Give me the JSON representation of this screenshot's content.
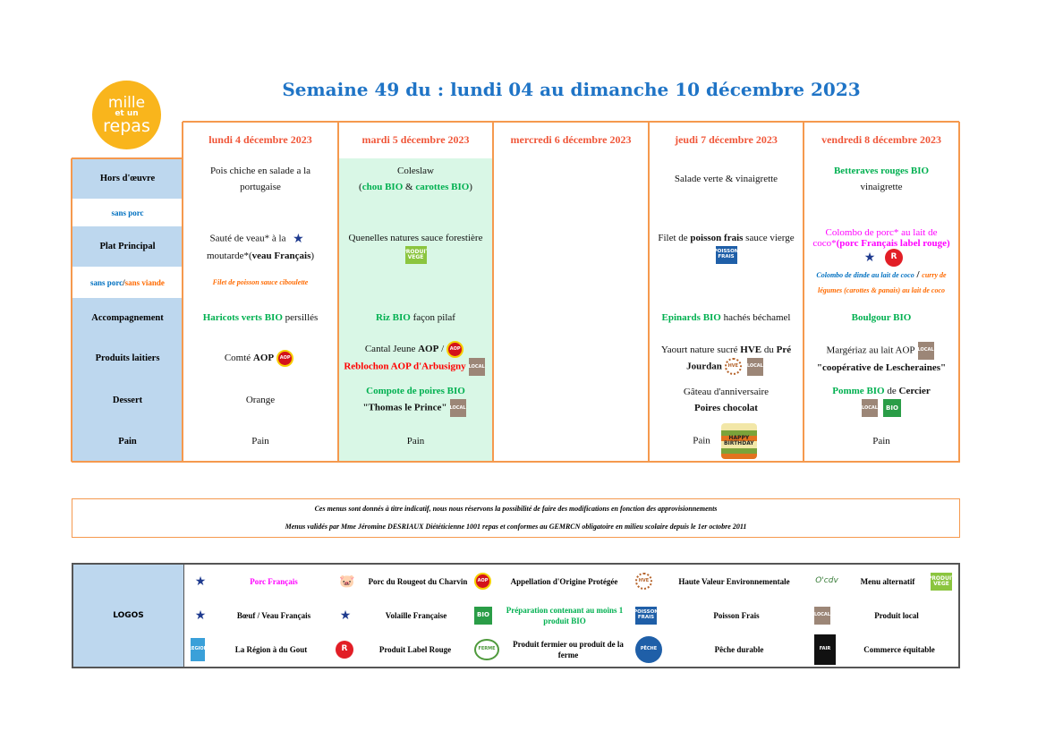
{
  "logo": {
    "line1": "mille",
    "line2": "et un",
    "line3": "repas"
  },
  "title": "Semaine 49 du : lundi 04 au dimanche 10 décembre 2023",
  "row_labels": [
    {
      "text": "Hors d'œuvre",
      "kind": "main"
    },
    {
      "parts": [
        [
          "sans porc",
          "bl"
        ]
      ],
      "kind": "alt"
    },
    {
      "text": "Plat Principal",
      "kind": "main"
    },
    {
      "parts": [
        [
          "sans porc",
          "bl"
        ],
        [
          " / ",
          "b"
        ],
        [
          "sans viande",
          "o"
        ]
      ],
      "kind": "alt"
    },
    {
      "text": "Accompagnement",
      "kind": "main"
    },
    {
      "text": "Produits laitiers",
      "kind": "main"
    },
    {
      "text": "Dessert",
      "kind": "main"
    },
    {
      "text": "Pain",
      "kind": "main"
    }
  ],
  "colors": {
    "accent_orange": "#f5994e",
    "label_blue": "#bdd7ee",
    "title_blue": "#1f74c6",
    "day_header": "#f0573a",
    "bio_green": "#00b050",
    "tuesday_bg": "#d9f7e6"
  },
  "days": [
    {
      "name": "lundi 4 décembre 2023",
      "cells": {
        "hors": [
          [
            [
              "Pois chiche en salade a la",
              ""
            ]
          ],
          [
            [
              "portugaise",
              ""
            ]
          ]
        ],
        "sans_porc": [],
        "plat": [
          [
            [
              "Sauté de veau* à la",
              ""
            ],
            {
              "icon": "france"
            }
          ],
          [
            [
              "moutarde*(",
              ""
            ],
            [
              "veau Français",
              "b"
            ],
            [
              ")",
              ""
            ]
          ]
        ],
        "alt": [
          [
            [
              "Filet de poisson sauce ciboulette",
              "o it"
            ]
          ]
        ],
        "accomp": [
          [
            [
              "Haricots verts BIO",
              "g"
            ],
            [
              " persillés",
              ""
            ]
          ]
        ],
        "laitiers": [
          [
            [
              "Comté ",
              ""
            ],
            [
              "AOP",
              "b"
            ],
            {
              "icon": "aop"
            }
          ]
        ],
        "dessert": [
          [
            [
              "Orange",
              ""
            ]
          ]
        ],
        "pain": [
          [
            [
              "Pain",
              ""
            ]
          ]
        ]
      }
    },
    {
      "name": "mardi 5 décembre 2023",
      "cells": {
        "hors": [
          [
            [
              "Coleslaw",
              ""
            ]
          ],
          [
            [
              "(",
              ""
            ],
            [
              "chou BIO",
              "g"
            ],
            [
              " & ",
              ""
            ],
            [
              "carottes BIO",
              "g"
            ],
            [
              ")",
              ""
            ]
          ]
        ],
        "sans_porc": [],
        "plat": [
          [
            [
              "Quenelles natures sauce forestière",
              ""
            ]
          ],
          [
            {
              "icon": "vege"
            }
          ]
        ],
        "alt": [],
        "accomp": [
          [
            [
              "Riz BIO",
              "g"
            ],
            [
              " façon pilaf",
              ""
            ]
          ]
        ],
        "laitiers": [
          [
            [
              "Cantal Jeune ",
              ""
            ],
            [
              "AOP",
              "b"
            ],
            [
              " /",
              ""
            ],
            {
              "icon": "aop"
            }
          ],
          [
            [
              "Reblochon AOP d'Arbusigny",
              "r"
            ],
            {
              "icon": "local"
            }
          ]
        ],
        "dessert": [
          [
            [
              "Compote de poires BIO",
              "g"
            ]
          ],
          [
            [
              "\"Thomas le Prince\"",
              "b"
            ],
            {
              "icon": "local"
            }
          ]
        ],
        "pain": [
          [
            [
              "Pain",
              ""
            ]
          ]
        ]
      }
    },
    {
      "name": "mercredi 6 décembre 2023",
      "cells": {
        "hors": [],
        "sans_porc": [],
        "plat": [],
        "alt": [],
        "accomp": [],
        "laitiers": [],
        "dessert": [],
        "pain": []
      }
    },
    {
      "name": "jeudi 7 décembre 2023",
      "cells": {
        "hors": [
          [
            [
              "Salade verte & vinaigrette",
              ""
            ]
          ]
        ],
        "sans_porc": [],
        "plat": [
          [
            [
              "Filet de ",
              ""
            ],
            [
              "poisson frais",
              "b"
            ],
            [
              " sauce vierge",
              ""
            ]
          ],
          [
            {
              "icon": "poisson"
            }
          ]
        ],
        "alt": [],
        "accomp": [
          [
            [
              "Epinards BIO",
              "g"
            ],
            [
              " hachés béchamel",
              ""
            ]
          ]
        ],
        "laitiers": [
          [
            [
              "Yaourt nature sucré ",
              ""
            ],
            [
              "HVE",
              "b"
            ],
            [
              " du ",
              ""
            ],
            [
              "Pré",
              "b"
            ]
          ],
          [
            [
              "Jourdan",
              "b"
            ],
            {
              "icon": "hve"
            },
            {
              "icon": "local"
            }
          ]
        ],
        "dessert": [
          [
            [
              "Gâteau d'anniversaire",
              ""
            ]
          ],
          [
            [
              "Poires chocolat",
              "b"
            ]
          ]
        ],
        "pain": [
          [
            [
              "Pain",
              ""
            ],
            {
              "icon": "cake"
            }
          ]
        ]
      }
    },
    {
      "name": "vendredi 8 décembre 2023",
      "cells": {
        "hors": [
          [
            [
              "Betteraves rouges BIO",
              "g"
            ]
          ],
          [
            [
              "vinaigrette",
              ""
            ]
          ]
        ],
        "sans_porc": [],
        "plat": [
          [
            [
              "Colombo de porc* au lait de",
              "m"
            ]
          ],
          [
            [
              "coco*",
              "m"
            ],
            [
              "(porc Français label rouge)",
              "mb"
            ]
          ],
          [
            {
              "icon": "france"
            },
            {
              "icon": "labelrouge"
            }
          ]
        ],
        "alt": [
          [
            [
              "Colombo de dinde au lait de coco",
              "bl it"
            ],
            [
              " / ",
              "b"
            ],
            [
              "curry de",
              "o it"
            ]
          ],
          [
            [
              "légumes (carottes & panais) au lait de coco",
              "o it"
            ]
          ]
        ],
        "accomp": [
          [
            [
              "Boulgour BIO",
              "g"
            ]
          ]
        ],
        "laitiers": [
          [
            [
              "Margériaz au lait AOP",
              ""
            ],
            {
              "icon": "local"
            }
          ],
          [
            [
              "\"coopérative de Lescheraines\"",
              "b"
            ]
          ]
        ],
        "dessert": [
          [
            [
              "Pomme BIO",
              "g"
            ],
            [
              " de ",
              ""
            ],
            [
              "Cercier",
              "b"
            ]
          ],
          [
            {
              "icon": "local"
            },
            {
              "icon": "bio"
            }
          ]
        ],
        "pain": [
          [
            [
              "Pain",
              ""
            ]
          ]
        ]
      }
    }
  ],
  "footer": {
    "line1": "Ces menus sont donnés à titre indicatif, nous nous réservons la possibilité de faire des modifications en fonction des approvisionnements",
    "line2": "Menus validés par Mme Jéromine DESRIAUX Diététicienne 1001 repas et conformes au GEMRCN obligatoire en milieu scolaire depuis le 1er octobre 2011"
  },
  "legend": {
    "title": "LOGOS",
    "items": [
      {
        "icon": "france",
        "label": "Porc Français",
        "style": "m"
      },
      {
        "icon": "rougeot",
        "label": "Porc du Rougeot du Charvin",
        "style": ""
      },
      {
        "icon": "aop",
        "label": "Appellation d'Origine Protégée",
        "style": ""
      },
      {
        "icon": "hve",
        "label": "Haute Valeur Environnementale",
        "style": ""
      },
      {
        "icon": "ocdv",
        "label": "Menu alternatif",
        "style": "",
        "extra": "vege"
      },
      {
        "icon": "france",
        "label": "Bœuf / Veau Français",
        "style": ""
      },
      {
        "icon": "france",
        "label": "Volaille Française",
        "style": ""
      },
      {
        "icon": "bio",
        "label": "Préparation contenant au moins 1 produit BIO",
        "style": "g"
      },
      {
        "icon": "poisson",
        "label": "Poisson Frais",
        "style": ""
      },
      {
        "icon": "local",
        "label": "Produit local",
        "style": ""
      },
      {
        "icon": "region",
        "label": "La Région à du Gout",
        "style": ""
      },
      {
        "icon": "labelrouge",
        "label": "Produit Label Rouge",
        "style": ""
      },
      {
        "icon": "fermier",
        "label": "Produit fermier ou produit de la ferme",
        "style": ""
      },
      {
        "icon": "peche",
        "label": "Pêche durable",
        "style": ""
      },
      {
        "icon": "fair",
        "label": "Commerce équitable",
        "style": ""
      }
    ]
  },
  "icon_text": {
    "bio": "BIO",
    "local": "LOCAL",
    "vege": "PRODUIT VEGE",
    "poisson": "POISSON FRAIS",
    "aop": "AOP",
    "hve": "HVE",
    "france": "★",
    "labelrouge": "R",
    "rougeot": "🐷",
    "region": "REGION",
    "fermier": "FERME",
    "peche": "PÊCHE",
    "ocdv": "O'cdv",
    "fair": "FAIR",
    "cake": "HAPPY BIRTHDAY"
  }
}
